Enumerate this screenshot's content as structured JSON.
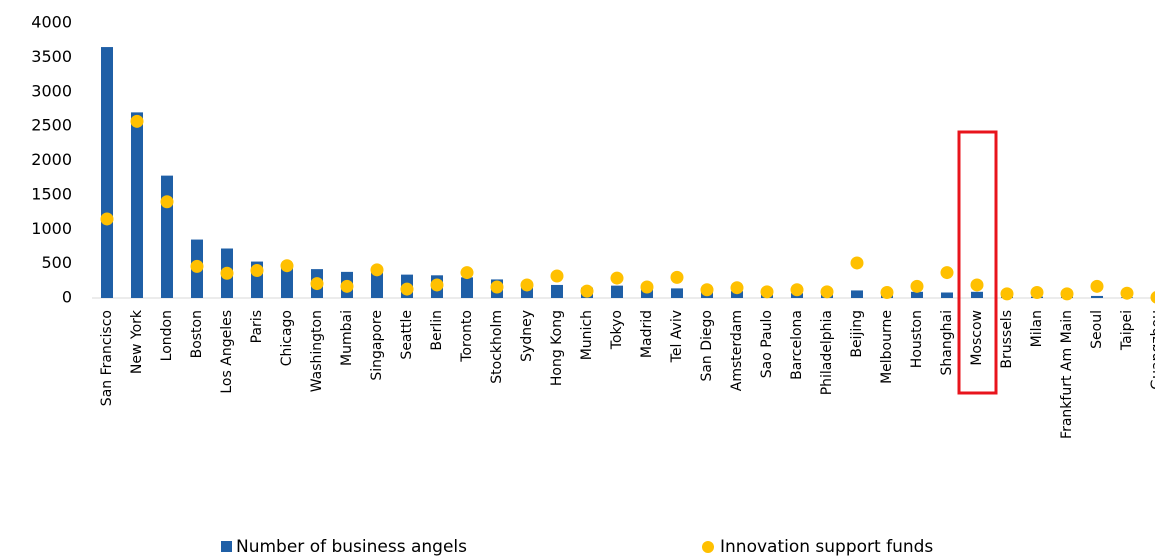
{
  "chart_data": {
    "type": "bar+scatter",
    "categories": [
      "San Francisco",
      "New York",
      "London",
      "Boston",
      "Los Angeles",
      "Paris",
      "Chicago",
      "Washington",
      "Mumbai",
      "Singapore",
      "Seattle",
      "Berlin",
      "Toronto",
      "Stockholm",
      "Sydney",
      "Hong Kong",
      "Munich",
      "Tokyo",
      "Madrid",
      "Tel Aviv",
      "San Diego",
      "Amsterdam",
      "Sao Paulo",
      "Barcelona",
      "Philadelphia",
      "Beijing",
      "Melbourne",
      "Houston",
      "Shanghai",
      "Moscow",
      "Brussels",
      "Milan",
      "Frankfurt Am Main",
      "Seoul",
      "Taipei",
      "Guangzhou"
    ],
    "series": [
      {
        "name": "Number of business angels",
        "type": "bar",
        "color": "#1f5fa6",
        "values": [
          3650,
          2700,
          1780,
          850,
          720,
          530,
          480,
          420,
          380,
          370,
          340,
          330,
          300,
          270,
          210,
          190,
          150,
          180,
          150,
          140,
          100,
          100,
          80,
          70,
          60,
          110,
          50,
          90,
          80,
          90,
          30,
          20,
          20,
          30,
          10,
          5
        ]
      },
      {
        "name": "Innovation support funds",
        "type": "scatter",
        "color": "#ffc000",
        "values": [
          1150,
          2570,
          1400,
          460,
          360,
          400,
          470,
          210,
          170,
          410,
          130,
          190,
          370,
          160,
          190,
          320,
          100,
          290,
          160,
          300,
          120,
          150,
          90,
          120,
          90,
          510,
          80,
          170,
          370,
          190,
          60,
          80,
          60,
          170,
          70,
          10
        ]
      }
    ],
    "ylim": [
      0,
      4000
    ],
    "yticks": [
      0,
      500,
      1000,
      1500,
      2000,
      2500,
      3000,
      3500,
      4000
    ],
    "grid": false
  }
}
